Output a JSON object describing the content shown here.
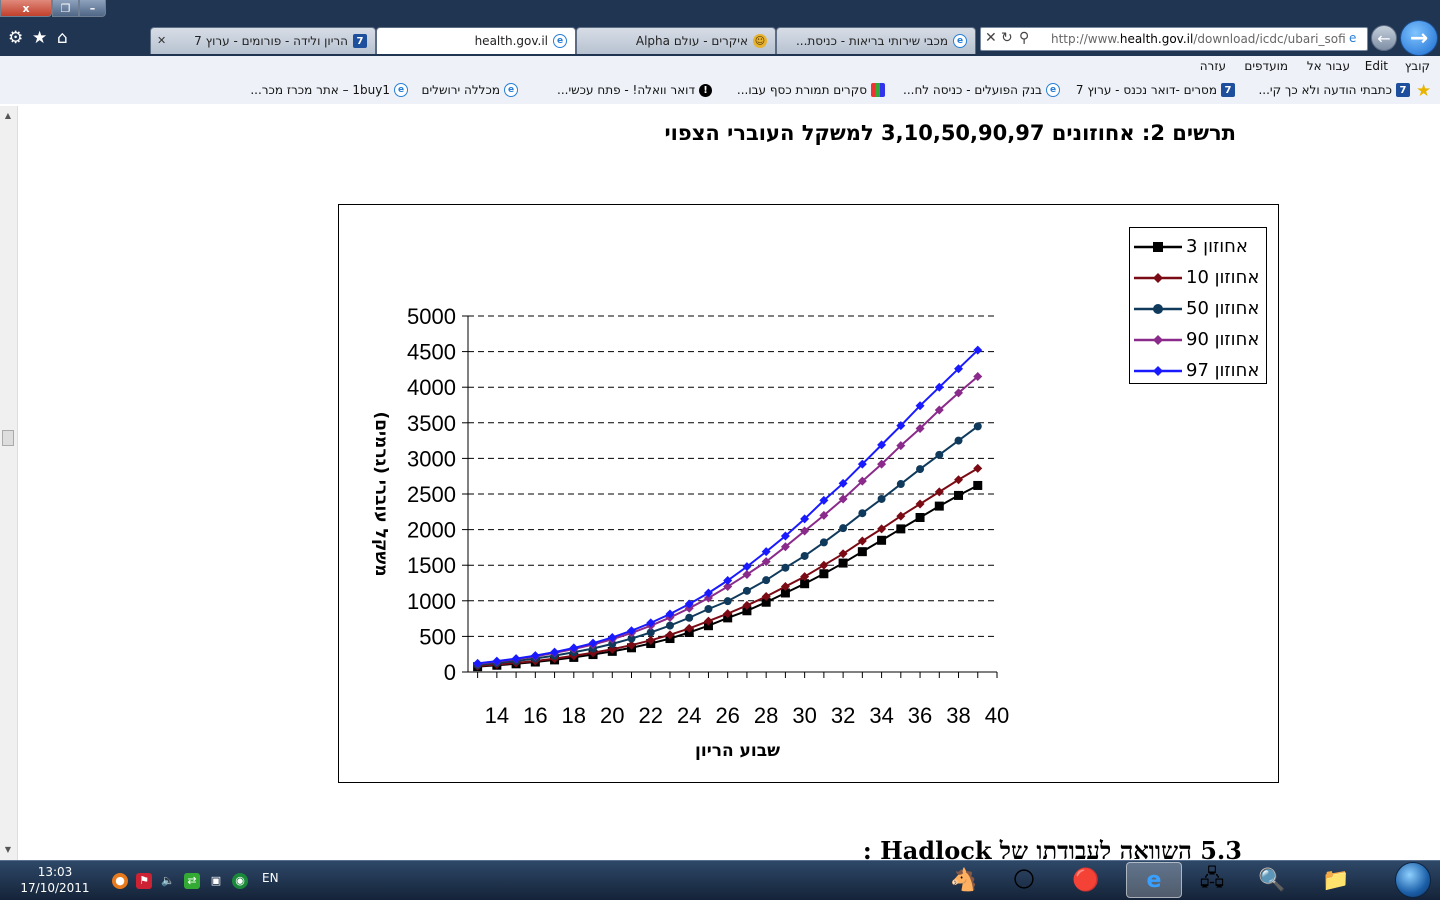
{
  "window": {
    "close_label": "x",
    "restore_label": "❐",
    "minimize_label": "–"
  },
  "tabs": [
    {
      "label": "הריון ולידה - פורומים - ערוץ 7",
      "icon": "seven-icon"
    },
    {
      "label": "health.gov.il",
      "icon": "ie-icon"
    },
    {
      "label": "איקרים - עולם Alpha",
      "icon": "character-icon"
    },
    {
      "label": "מכבי שירותי בריאות - כניסת...",
      "icon": "ie-icon"
    }
  ],
  "address": {
    "url_prefix": "http://www.",
    "url_domain": "health.gov.il",
    "url_rest": "/download/icdc/ubari_sofi.pd"
  },
  "menu": [
    "קובץ",
    "Edit",
    "עבור אל",
    "מועדפים",
    "עזרה"
  ],
  "favorites": [
    {
      "label": "כתבתי הודעה ולא כך קי...",
      "icon": "seven-icon"
    },
    {
      "label": "מסרים -דואר נכנס - ערוץ 7",
      "icon": "seven-icon"
    },
    {
      "label": "בנק הפועלים - כניסה לח...",
      "icon": "ie-icon"
    },
    {
      "label": "סקרים תמורת כסף  עבו...",
      "icon": "grid-icon"
    },
    {
      "label": "דואר וואלה! - פתח עכשי...",
      "icon": "bang-icon"
    },
    {
      "label": "מכללה ירושלים",
      "icon": "ie-icon"
    },
    {
      "label": "1buy1 – אתר מכרז  מכר...",
      "icon": "ie-icon"
    }
  ],
  "document": {
    "chart_heading": "תרשים 2: אחוזונים 3,10,50,90,97 למשקל העוברי הצפוי",
    "section_heading": "5.3 השוואה לעבודתו של Hadlock :"
  },
  "chart_data": {
    "type": "line",
    "xlabel": "שבוע הריון",
    "ylabel": "משקל עוברי (גרמים)",
    "x": [
      13,
      14,
      15,
      16,
      17,
      18,
      19,
      20,
      21,
      22,
      23,
      24,
      25,
      26,
      27,
      28,
      29,
      30,
      31,
      32,
      33,
      34,
      35,
      36,
      37,
      38,
      39
    ],
    "xticks": [
      14,
      16,
      18,
      20,
      22,
      24,
      26,
      28,
      30,
      32,
      34,
      36,
      38,
      40
    ],
    "xlim": [
      12.5,
      40
    ],
    "yticks": [
      0,
      500,
      1000,
      1500,
      2000,
      2500,
      3000,
      3500,
      4000,
      4500,
      5000
    ],
    "ylim": [
      0,
      5000
    ],
    "grid": "horizontal-dashed",
    "legend_position": "top-right",
    "series": [
      {
        "name": "אחוזון 3",
        "color": "#000000",
        "marker": "square",
        "values": [
          75,
          95,
          115,
          140,
          170,
          205,
          245,
          290,
          340,
          400,
          470,
          555,
          650,
          760,
          860,
          980,
          1110,
          1240,
          1380,
          1530,
          1690,
          1850,
          2010,
          2170,
          2330,
          2480,
          2620
        ]
      },
      {
        "name": "אחוזון 10",
        "color": "#7a0a14",
        "marker": "diamond",
        "values": [
          82,
          105,
          128,
          155,
          188,
          228,
          270,
          320,
          378,
          445,
          522,
          612,
          715,
          820,
          935,
          1060,
          1200,
          1340,
          1500,
          1660,
          1840,
          2010,
          2190,
          2360,
          2530,
          2700,
          2860
        ]
      },
      {
        "name": "אחוזון 50",
        "color": "#103a5c",
        "marker": "circle",
        "values": [
          100,
          125,
          155,
          190,
          230,
          278,
          330,
          395,
          470,
          555,
          652,
          762,
          885,
          995,
          1140,
          1290,
          1465,
          1630,
          1820,
          2020,
          2230,
          2430,
          2640,
          2850,
          3050,
          3250,
          3450
        ]
      },
      {
        "name": "אחוזון 90",
        "color": "#8a2a8a",
        "marker": "diamond",
        "values": [
          115,
          145,
          180,
          220,
          268,
          322,
          385,
          460,
          548,
          650,
          765,
          895,
          1040,
          1200,
          1370,
          1550,
          1760,
          1980,
          2200,
          2430,
          2680,
          2920,
          3180,
          3420,
          3680,
          3920,
          4150
        ]
      },
      {
        "name": "אחוזון 97",
        "color": "#1a1aff",
        "marker": "diamond",
        "values": [
          122,
          152,
          188,
          230,
          280,
          338,
          405,
          485,
          580,
          690,
          815,
          955,
          1110,
          1285,
          1480,
          1690,
          1910,
          2150,
          2410,
          2650,
          2920,
          3190,
          3460,
          3740,
          4000,
          4260,
          4520
        ]
      }
    ]
  },
  "taskbar": {
    "time": "13:03",
    "date": "17/10/2011",
    "language": "EN"
  }
}
